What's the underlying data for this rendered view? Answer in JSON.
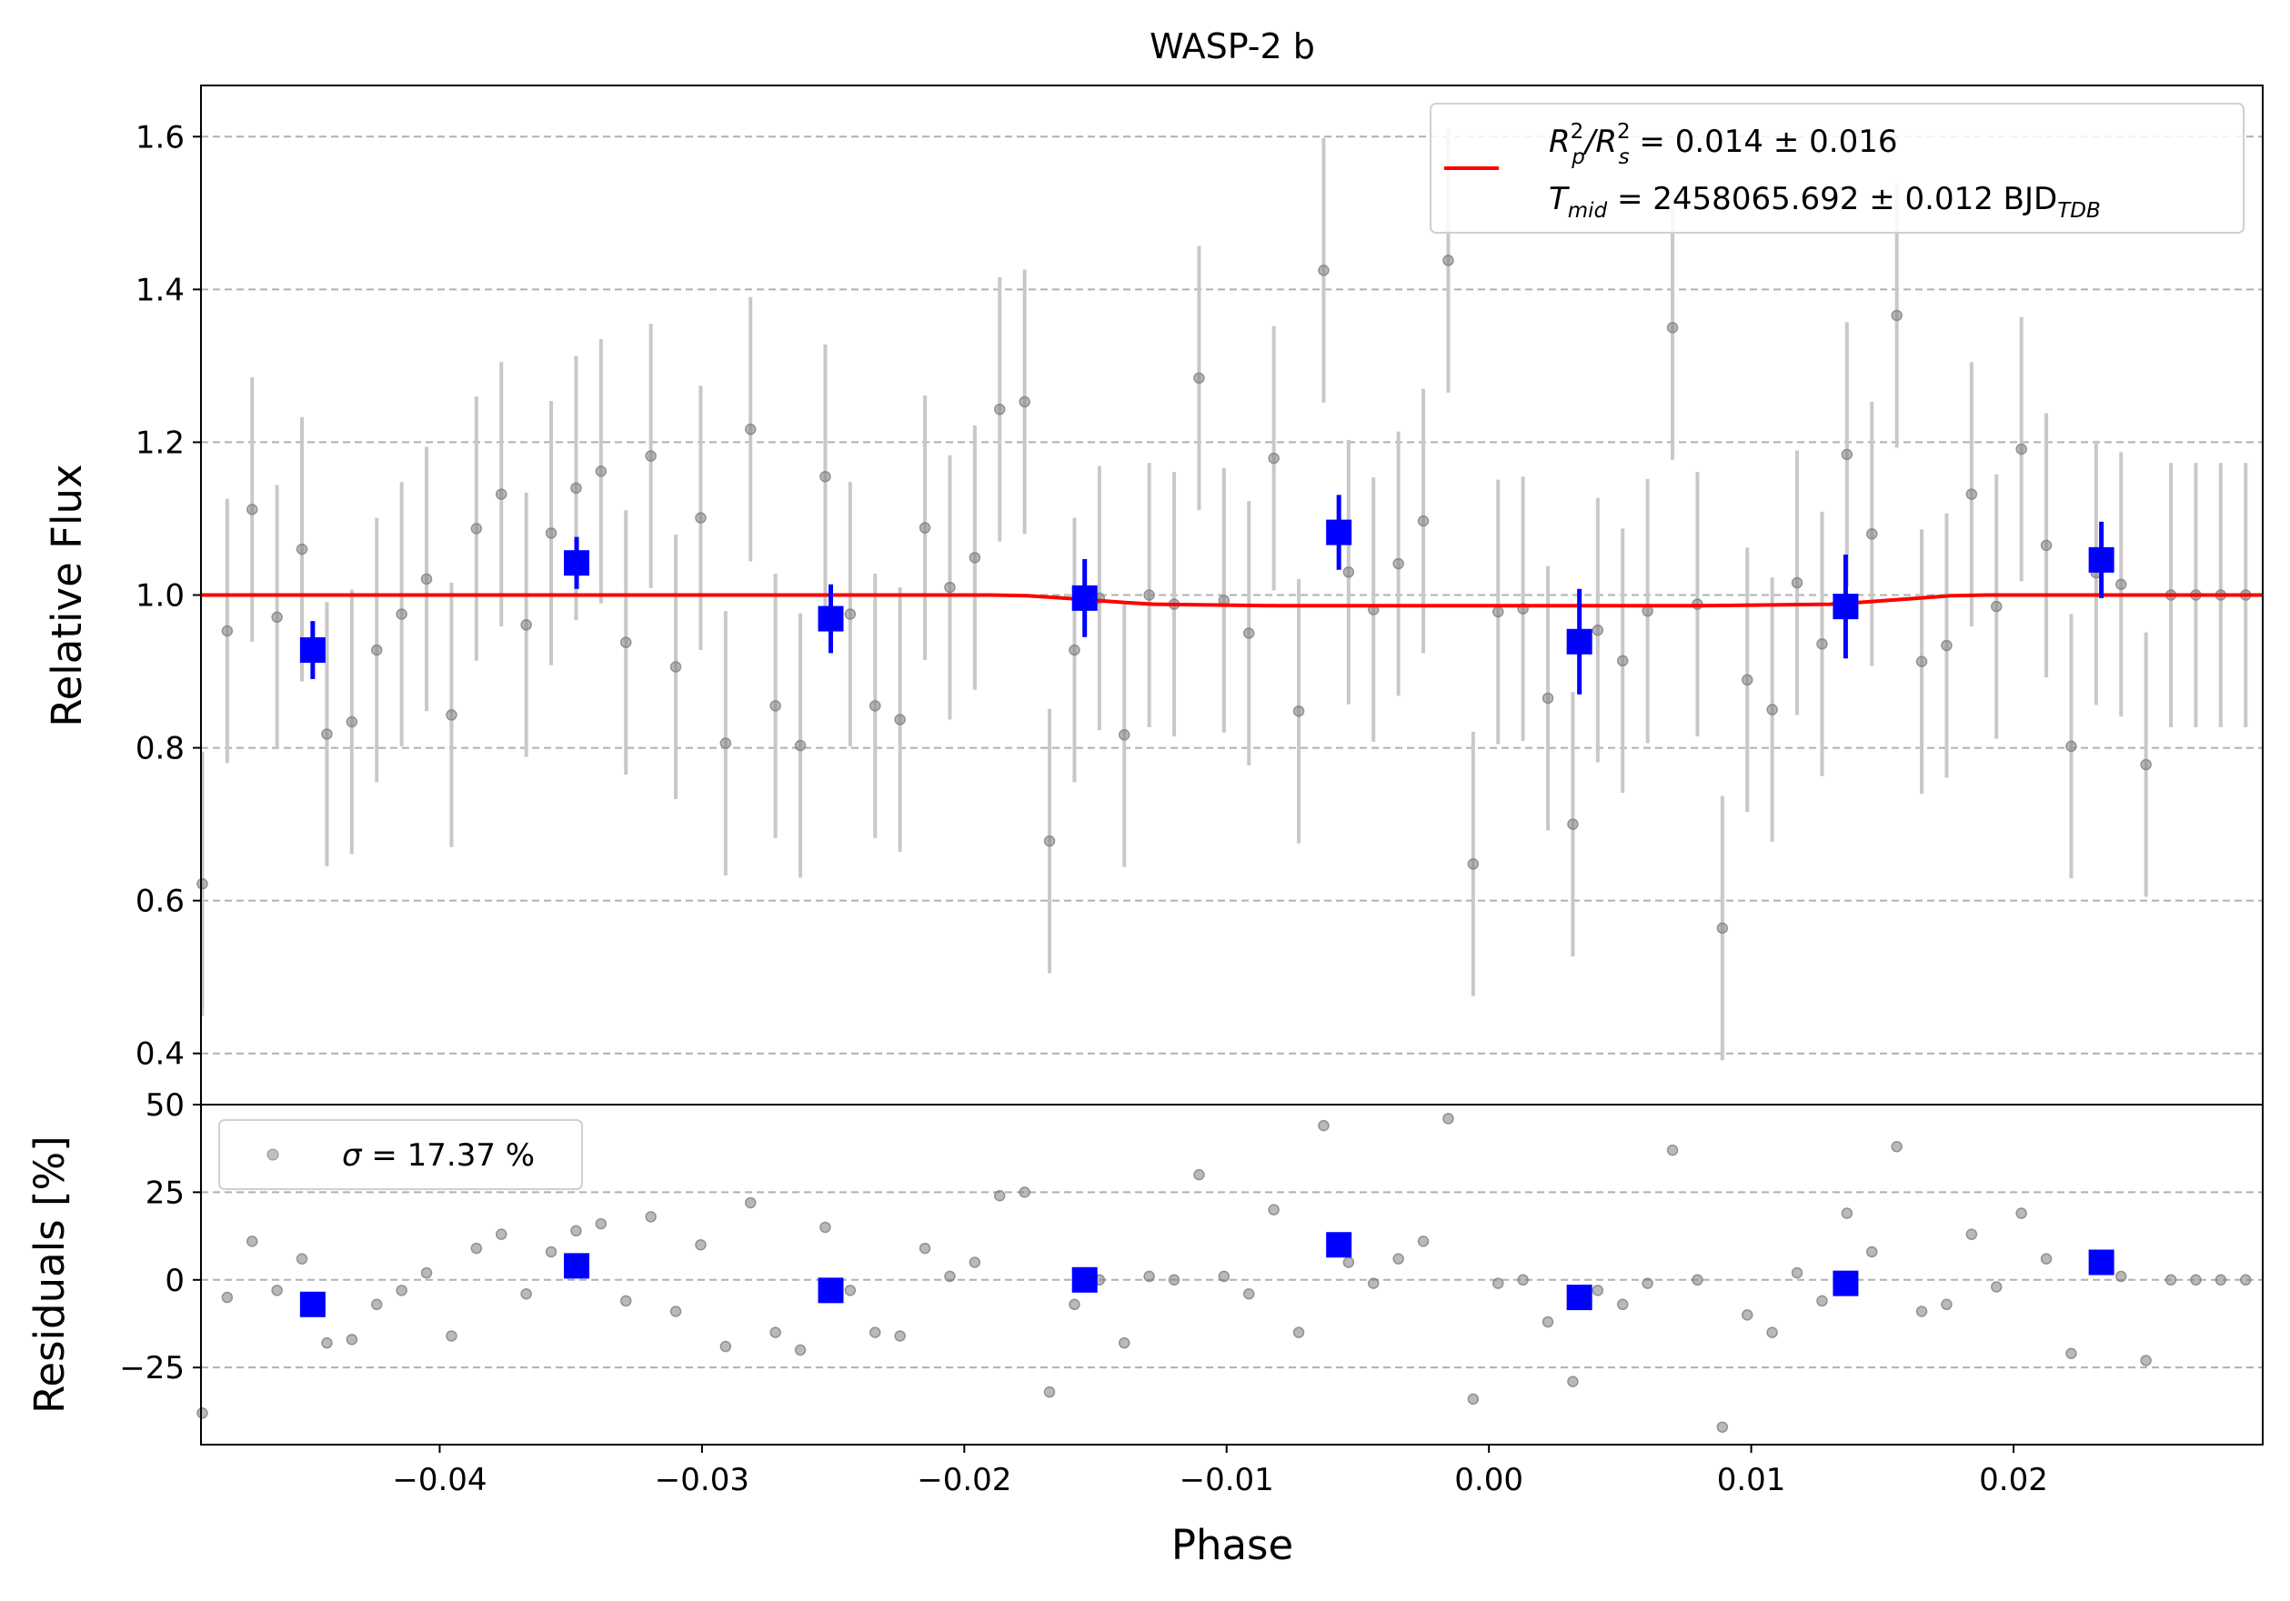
{
  "chart_data": [
    {
      "type": "scatter",
      "title": "WASP-2 b",
      "xlabel": "Phase",
      "ylabel": "Relative Flux",
      "xlim": [
        -0.0491,
        0.0295
      ],
      "ylim": [
        0.333,
        1.667
      ],
      "xticks": [
        -0.04,
        -0.03,
        -0.02,
        -0.01,
        0.0,
        0.01,
        0.02
      ],
      "xticklabels": [
        "−0.04",
        "−0.03",
        "−0.02",
        "−0.01",
        "0.00",
        "0.01",
        "0.02"
      ],
      "yticks": [
        0.4,
        0.6,
        0.8,
        1.0,
        1.2,
        1.4,
        1.6
      ],
      "yticklabels": [
        "0.4",
        "0.6",
        "0.8",
        "1.0",
        "1.2",
        "1.4",
        "1.6"
      ],
      "grid": "horizontal dashed",
      "legend_position": "upper right",
      "legend": {
        "line1": {
          "pre": "R",
          "sup1": "2",
          "sub1": "p",
          "mid": "/R",
          "sup2": "2",
          "sub2": "s",
          "post": " = 0.014 ± 0.016"
        },
        "line2": {
          "pre": "T",
          "sub1": "mid",
          "post": " = 2458065.692 ± 0.012 BJD",
          "sub2": "TDB"
        }
      },
      "series": [
        {
          "role": "raw",
          "color": "#808080",
          "x": [
            -0.04905,
            -0.0481,
            -0.04715,
            -0.0462,
            -0.04525,
            -0.0443,
            -0.04335,
            -0.0424,
            -0.04145,
            -0.0405,
            -0.03955,
            -0.0386,
            -0.03765,
            -0.0367,
            -0.03575,
            -0.0348,
            -0.03385,
            -0.0329,
            -0.03195,
            -0.031,
            -0.03005,
            -0.0291,
            -0.02815,
            -0.0272,
            -0.02625,
            -0.0253,
            -0.02435,
            -0.0234,
            -0.02245,
            -0.0215,
            -0.02055,
            -0.0196,
            -0.01865,
            -0.0177,
            -0.01675,
            -0.0158,
            -0.01485,
            -0.0139,
            -0.01295,
            -0.012,
            -0.01105,
            -0.0101,
            -0.00915,
            -0.0082,
            -0.00725,
            -0.0063,
            -0.00535,
            -0.0044,
            -0.00345,
            -0.0025,
            -0.00155,
            -0.0006,
            0.00035,
            0.0013,
            0.00225,
            0.0032,
            0.00415,
            0.0051,
            0.00605,
            0.007,
            0.00795,
            0.0089,
            0.00985,
            0.0108,
            0.01175,
            0.0127,
            0.01365,
            0.0146,
            0.01555,
            0.0165,
            0.01745,
            0.0184,
            0.01935,
            0.0203,
            0.02125,
            0.0222,
            0.02315,
            0.0241,
            0.02505,
            0.026,
            0.02695,
            0.0279,
            0.02885
          ],
          "y": [
            0.622,
            0.953,
            1.112,
            0.971,
            1.06,
            0.818,
            0.834,
            0.928,
            0.975,
            1.021,
            0.843,
            1.087,
            1.132,
            0.961,
            1.081,
            1.14,
            1.162,
            0.938,
            1.182,
            0.906,
            1.101,
            0.806,
            1.217,
            0.855,
            0.803,
            1.155,
            0.975,
            0.855,
            0.837,
            1.088,
            1.01,
            1.049,
            1.243,
            1.253,
            0.678,
            0.928,
            0.996,
            0.817,
            1.0,
            0.988,
            1.284,
            0.993,
            0.95,
            1.179,
            0.848,
            1.425,
            1.03,
            0.981,
            1.041,
            1.097,
            1.438,
            0.648,
            0.978,
            0.982,
            0.865,
            0.7,
            0.954,
            0.914,
            0.979,
            1.35,
            0.988,
            0.564,
            0.889,
            0.85,
            1.016,
            0.936,
            1.184,
            1.08,
            1.366,
            0.913,
            0.934,
            1.132,
            0.985,
            1.191,
            1.065,
            0.802,
            1.029,
            1.014,
            0.778,
            1.0,
            1.0,
            1.0,
            1.0
          ],
          "yerr": 0.173
        },
        {
          "role": "binned",
          "color": "#0000ff",
          "x": [
            -0.04484,
            -0.03478,
            -0.02509,
            -0.01541,
            -0.00572,
            0.00345,
            0.0136,
            0.02335
          ],
          "y": [
            0.928,
            1.042,
            0.969,
            0.996,
            1.082,
            0.939,
            0.985,
            1.046
          ],
          "yerr": [
            0.038,
            0.034,
            0.045,
            0.051,
            0.049,
            0.069,
            0.068,
            0.05
          ]
        },
        {
          "role": "model",
          "color": "#ff0000",
          "x": [
            -0.0491,
            -0.019,
            -0.0176,
            -0.0162,
            -0.015,
            -0.0138,
            -0.0128,
            -0.008,
            0.0,
            0.008,
            0.013,
            0.014,
            0.0152,
            0.0164,
            0.0176,
            0.019,
            0.0295
          ],
          "y": [
            1.0,
            1.0,
            0.999,
            0.996,
            0.993,
            0.99,
            0.988,
            0.986,
            0.986,
            0.986,
            0.988,
            0.99,
            0.993,
            0.996,
            0.999,
            1.0,
            1.0
          ]
        }
      ]
    },
    {
      "type": "scatter",
      "xlabel": "Phase",
      "ylabel": "Residuals [%]",
      "xlim": [
        -0.0491,
        0.0295
      ],
      "ylim": [
        -47,
        50
      ],
      "yticks": [
        -25,
        0,
        25,
        50
      ],
      "yticklabels": [
        "−25",
        "0",
        "25",
        "50"
      ],
      "grid": "horizontal dashed",
      "legend_position": "upper left",
      "legend": {
        "sigma": "σ",
        "text": " = 17.37 %"
      },
      "series": [
        {
          "role": "raw",
          "color": "#808080",
          "x": [
            -0.04905,
            -0.0481,
            -0.04715,
            -0.0462,
            -0.04525,
            -0.0443,
            -0.04335,
            -0.0424,
            -0.04145,
            -0.0405,
            -0.03955,
            -0.0386,
            -0.03765,
            -0.0367,
            -0.03575,
            -0.0348,
            -0.03385,
            -0.0329,
            -0.03195,
            -0.031,
            -0.03005,
            -0.0291,
            -0.02815,
            -0.0272,
            -0.02625,
            -0.0253,
            -0.02435,
            -0.0234,
            -0.02245,
            -0.0215,
            -0.02055,
            -0.0196,
            -0.01865,
            -0.0177,
            -0.01675,
            -0.0158,
            -0.01485,
            -0.0139,
            -0.01295,
            -0.012,
            -0.01105,
            -0.0101,
            -0.00915,
            -0.0082,
            -0.00725,
            -0.0063,
            -0.00535,
            -0.0044,
            -0.00345,
            -0.0025,
            -0.00155,
            -0.0006,
            0.00035,
            0.0013,
            0.00225,
            0.0032,
            0.00415,
            0.0051,
            0.00605,
            0.007,
            0.00795,
            0.0089,
            0.00985,
            0.0108,
            0.01175,
            0.0127,
            0.01365,
            0.0146,
            0.01555,
            0.0165,
            0.01745,
            0.0184,
            0.01935,
            0.0203,
            0.02125,
            0.0222,
            0.02315,
            0.0241,
            0.02505,
            0.026,
            0.02695,
            0.0279,
            0.02885
          ],
          "y": [
            -38,
            -5,
            11,
            -3,
            6,
            -18,
            -17,
            -7,
            -3,
            2,
            -16,
            9,
            13,
            -4,
            8,
            14,
            16,
            -6,
            18,
            -9,
            10,
            -19,
            22,
            -15,
            -20,
            15,
            -3,
            -15,
            -16,
            9,
            1,
            5,
            24,
            25,
            -32,
            -7,
            0,
            -18,
            1,
            0,
            30,
            1,
            -4,
            20,
            -15,
            44,
            5,
            -1,
            6,
            11,
            46,
            -34,
            -1,
            0,
            -12,
            -29,
            -3,
            -7,
            -1,
            37,
            0,
            -42,
            -10,
            -15,
            2,
            -6,
            19,
            8,
            38,
            -9,
            -7,
            13,
            -2,
            19,
            6,
            -21,
            3,
            1,
            -23,
            0,
            0,
            0,
            0
          ]
        },
        {
          "role": "binned",
          "color": "#0000ff",
          "x": [
            -0.04484,
            -0.03478,
            -0.02509,
            -0.01541,
            -0.00572,
            0.00345,
            0.0136,
            0.02335
          ],
          "y": [
            -7,
            4,
            -3,
            0,
            10,
            -5,
            -1,
            5
          ]
        }
      ]
    }
  ]
}
